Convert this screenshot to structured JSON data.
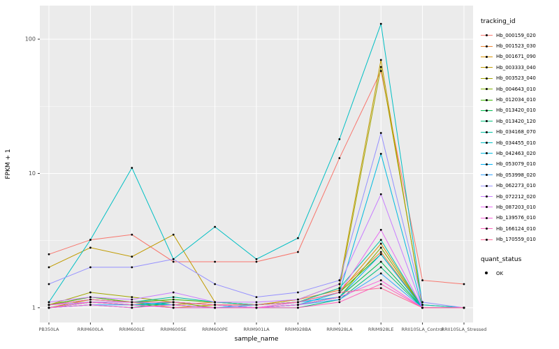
{
  "chart_data": {
    "type": "line",
    "title": "",
    "xlabel": "sample_name",
    "ylabel": "FPKM + 1",
    "y_scale": "log10",
    "y_ticks": [
      1,
      10,
      100
    ],
    "ylim": [
      1,
      180
    ],
    "grid": "on",
    "legend": {
      "title": "tracking_id",
      "position": "right"
    },
    "quant_legend": {
      "title": "quant_status",
      "items": [
        {
          "label": "OK",
          "symbol": "black-point"
        }
      ]
    },
    "style": {
      "panel_bg": "#EBEBEB",
      "grid_color": "#FFFFFF",
      "point_color": "#000000",
      "tick_text": "#4D4D4D",
      "tick_mark": "#333333"
    },
    "categories": [
      "PB350LA",
      "RRIM600LA",
      "RRIM600LE",
      "RRIM600SE",
      "RRIM600PE",
      "RRIM901LA",
      "RRIM928BA",
      "RRIM928LA",
      "RRIM928LE",
      "RRII105LA_Control",
      "RRII105LA_Stressed"
    ],
    "series": [
      {
        "name": "Hb_000159_020",
        "color": "#F8766D",
        "values": [
          2.5,
          3.2,
          3.5,
          2.2,
          2.2,
          2.2,
          2.6,
          13,
          58,
          1.6,
          1.5
        ]
      },
      {
        "name": "Hb_001523_030",
        "color": "#EA8331",
        "values": [
          1.05,
          1.2,
          1.1,
          1.05,
          1.1,
          1.05,
          1.15,
          1.35,
          2.6,
          1.0,
          1.0
        ]
      },
      {
        "name": "Hb_001671_090",
        "color": "#D89000",
        "values": [
          1.0,
          1.15,
          1.1,
          1.0,
          1.05,
          1.0,
          1.1,
          1.3,
          3.0,
          1.0,
          1.0
        ]
      },
      {
        "name": "Hb_003333_040",
        "color": "#C09B00",
        "values": [
          2.0,
          2.8,
          2.4,
          3.5,
          1.1,
          1.05,
          1.15,
          1.5,
          70,
          1.0,
          1.0
        ]
      },
      {
        "name": "Hb_003523_040",
        "color": "#A3A500",
        "values": [
          1.05,
          1.3,
          1.2,
          1.1,
          1.05,
          1.05,
          1.1,
          1.4,
          62,
          1.05,
          1.0
        ]
      },
      {
        "name": "Hb_004643_010",
        "color": "#7CAE00",
        "values": [
          1.0,
          1.1,
          1.05,
          1.1,
          1.0,
          1.0,
          1.05,
          1.2,
          2.8,
          1.0,
          1.0
        ]
      },
      {
        "name": "Hb_012034_010",
        "color": "#39B600",
        "values": [
          1.05,
          1.2,
          1.1,
          1.15,
          1.1,
          1.05,
          1.1,
          1.3,
          2.5,
          1.0,
          1.0
        ]
      },
      {
        "name": "Hb_013420_010",
        "color": "#00BB4E",
        "values": [
          1.0,
          1.05,
          1.0,
          1.1,
          1.05,
          1.0,
          1.05,
          1.2,
          2.2,
          1.0,
          1.0
        ]
      },
      {
        "name": "Hb_013420_120",
        "color": "#00BF7D",
        "values": [
          1.0,
          1.1,
          1.05,
          1.05,
          1.0,
          1.0,
          1.0,
          1.15,
          2.0,
          1.0,
          1.0
        ]
      },
      {
        "name": "Hb_034168_070",
        "color": "#00C1A3",
        "values": [
          1.05,
          1.15,
          1.1,
          1.2,
          1.1,
          1.05,
          1.1,
          1.4,
          3.2,
          1.0,
          1.0
        ]
      },
      {
        "name": "Hb_034455_010",
        "color": "#00BFC4",
        "values": [
          1.1,
          3.2,
          11,
          2.3,
          4.0,
          2.3,
          3.3,
          18,
          130,
          1.05,
          1.0
        ]
      },
      {
        "name": "Hb_042463_020",
        "color": "#00BAE0",
        "values": [
          1.0,
          1.1,
          1.05,
          1.1,
          1.05,
          1.0,
          1.05,
          1.3,
          14,
          1.0,
          1.0
        ]
      },
      {
        "name": "Hb_053079_010",
        "color": "#00B0F6",
        "values": [
          1.05,
          1.1,
          1.1,
          1.05,
          1.0,
          1.05,
          1.1,
          1.2,
          2.5,
          1.0,
          1.0
        ]
      },
      {
        "name": "Hb_053998_020",
        "color": "#35A2FF",
        "values": [
          1.0,
          1.05,
          1.05,
          1.0,
          1.0,
          1.0,
          1.05,
          1.15,
          1.8,
          1.0,
          1.0
        ]
      },
      {
        "name": "Hb_062273_010",
        "color": "#9590FF",
        "values": [
          1.5,
          2.0,
          2.0,
          2.3,
          1.5,
          1.2,
          1.3,
          1.6,
          20,
          1.1,
          1.0
        ]
      },
      {
        "name": "Hb_072212_020",
        "color": "#C77CFF",
        "values": [
          1.1,
          1.2,
          1.15,
          1.3,
          1.1,
          1.1,
          1.15,
          1.5,
          7.0,
          1.0,
          1.0
        ]
      },
      {
        "name": "Hb_087203_010",
        "color": "#E76BF3",
        "values": [
          1.05,
          1.1,
          1.1,
          1.1,
          1.05,
          1.0,
          1.1,
          1.3,
          3.8,
          1.0,
          1.0
        ]
      },
      {
        "name": "Hb_139576_010",
        "color": "#FA62DB",
        "values": [
          1.0,
          1.05,
          1.0,
          1.05,
          1.0,
          1.0,
          1.05,
          1.2,
          1.6,
          1.0,
          1.0
        ]
      },
      {
        "name": "Hb_166124_010",
        "color": "#FF62BC",
        "values": [
          1.0,
          1.1,
          1.05,
          1.0,
          1.0,
          1.0,
          1.0,
          1.1,
          1.5,
          1.0,
          1.0
        ]
      },
      {
        "name": "Hb_170559_010",
        "color": "#FF6A98",
        "values": [
          1.05,
          1.15,
          1.1,
          1.1,
          1.05,
          1.05,
          1.1,
          1.3,
          1.4,
          1.0,
          1.0
        ]
      }
    ]
  }
}
